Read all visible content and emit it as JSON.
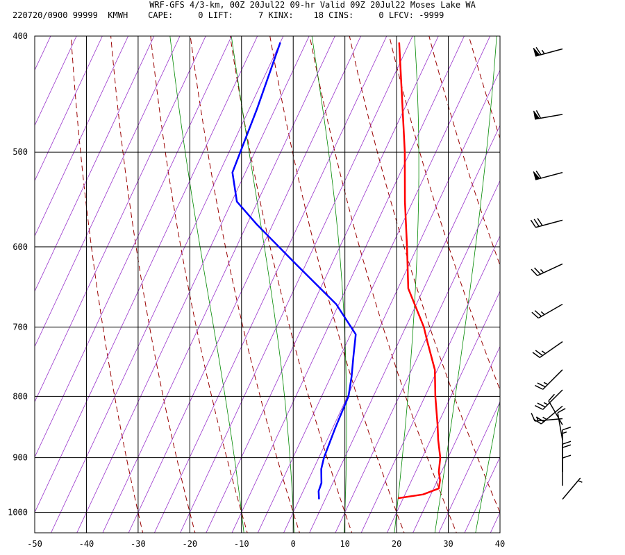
{
  "header": {
    "title": "WRF-GFS 4/3-km, 00Z 20Jul22 09-hr Valid 09Z 20Jul22 Moses Lake WA",
    "info": "220720/0900 99999  KMWH    CAPE:     0 LIFT:     7 KINX:    18 CINS:     0 LFCV: -9999"
  },
  "colors": {
    "temperature": "#ff0000",
    "dewpoint": "#0000ff",
    "grid": "#000000",
    "isotherm_skewed": "#9933cc",
    "dry_adiabat": "#990000",
    "moist_adiabat": "#008800",
    "wind_barb": "#000000"
  },
  "chart_data": {
    "type": "skew-t log-p sounding",
    "x_axis": {
      "label": "",
      "unit": "°C",
      "range": [
        -50,
        40
      ],
      "ticks": [
        -50,
        -40,
        -30,
        -20,
        -10,
        0,
        10,
        20,
        30,
        40
      ]
    },
    "y_axis": {
      "label": "",
      "unit": "hPa",
      "scale": "log",
      "range": [
        1040,
        400
      ],
      "ticks": [
        400,
        500,
        600,
        700,
        800,
        900,
        1000
      ]
    },
    "grid": true,
    "temperature_profile": [
      {
        "p": 973,
        "t": 19.0
      },
      {
        "p": 966,
        "t": 23.5
      },
      {
        "p": 955,
        "t": 26.0
      },
      {
        "p": 940,
        "t": 25.5
      },
      {
        "p": 925,
        "t": 24.5
      },
      {
        "p": 900,
        "t": 23.5
      },
      {
        "p": 870,
        "t": 21.5
      },
      {
        "p": 845,
        "t": 20.0
      },
      {
        "p": 800,
        "t": 17.0
      },
      {
        "p": 760,
        "t": 14.5
      },
      {
        "p": 720,
        "t": 10.5
      },
      {
        "p": 700,
        "t": 8.5
      },
      {
        "p": 650,
        "t": 2.0
      },
      {
        "p": 600,
        "t": -2.0
      },
      {
        "p": 550,
        "t": -6.5
      },
      {
        "p": 500,
        "t": -11.0
      },
      {
        "p": 450,
        "t": -16.5
      },
      {
        "p": 405,
        "t": -22.0
      }
    ],
    "dewpoint_profile": [
      {
        "p": 975,
        "td": 3.8
      },
      {
        "p": 960,
        "td": 3.0
      },
      {
        "p": 945,
        "td": 2.8
      },
      {
        "p": 920,
        "td": 1.5
      },
      {
        "p": 900,
        "td": 1.0
      },
      {
        "p": 850,
        "td": 0.5
      },
      {
        "p": 800,
        "td": 0.2
      },
      {
        "p": 770,
        "td": -1.0
      },
      {
        "p": 740,
        "td": -2.5
      },
      {
        "p": 710,
        "td": -4.0
      },
      {
        "p": 670,
        "td": -10.5
      },
      {
        "p": 620,
        "td": -22.0
      },
      {
        "p": 575,
        "td": -33.0
      },
      {
        "p": 550,
        "td": -39.0
      },
      {
        "p": 520,
        "td": -42.5
      },
      {
        "p": 460,
        "td": -43.5
      },
      {
        "p": 405,
        "td": -45.0
      }
    ],
    "wind_barbs": [
      {
        "p": 410,
        "direction_deg": 255,
        "speed_kt": 65
      },
      {
        "p": 465,
        "direction_deg": 260,
        "speed_kt": 60
      },
      {
        "p": 520,
        "direction_deg": 255,
        "speed_kt": 60
      },
      {
        "p": 570,
        "direction_deg": 255,
        "speed_kt": 30
      },
      {
        "p": 620,
        "direction_deg": 245,
        "speed_kt": 25
      },
      {
        "p": 670,
        "direction_deg": 240,
        "speed_kt": 25
      },
      {
        "p": 720,
        "direction_deg": 235,
        "speed_kt": 25
      },
      {
        "p": 760,
        "direction_deg": 225,
        "speed_kt": 25
      },
      {
        "p": 790,
        "direction_deg": 225,
        "speed_kt": 25
      },
      {
        "p": 815,
        "direction_deg": 230,
        "speed_kt": 25
      },
      {
        "p": 835,
        "direction_deg": 265,
        "speed_kt": 15
      },
      {
        "p": 845,
        "direction_deg": 330,
        "speed_kt": 10
      },
      {
        "p": 870,
        "direction_deg": 350,
        "speed_kt": 10
      },
      {
        "p": 900,
        "direction_deg": 0,
        "speed_kt": 15
      },
      {
        "p": 925,
        "direction_deg": 0,
        "speed_kt": 20
      },
      {
        "p": 950,
        "direction_deg": 0,
        "speed_kt": 10
      },
      {
        "p": 975,
        "direction_deg": 40,
        "speed_kt": 5
      }
    ]
  }
}
